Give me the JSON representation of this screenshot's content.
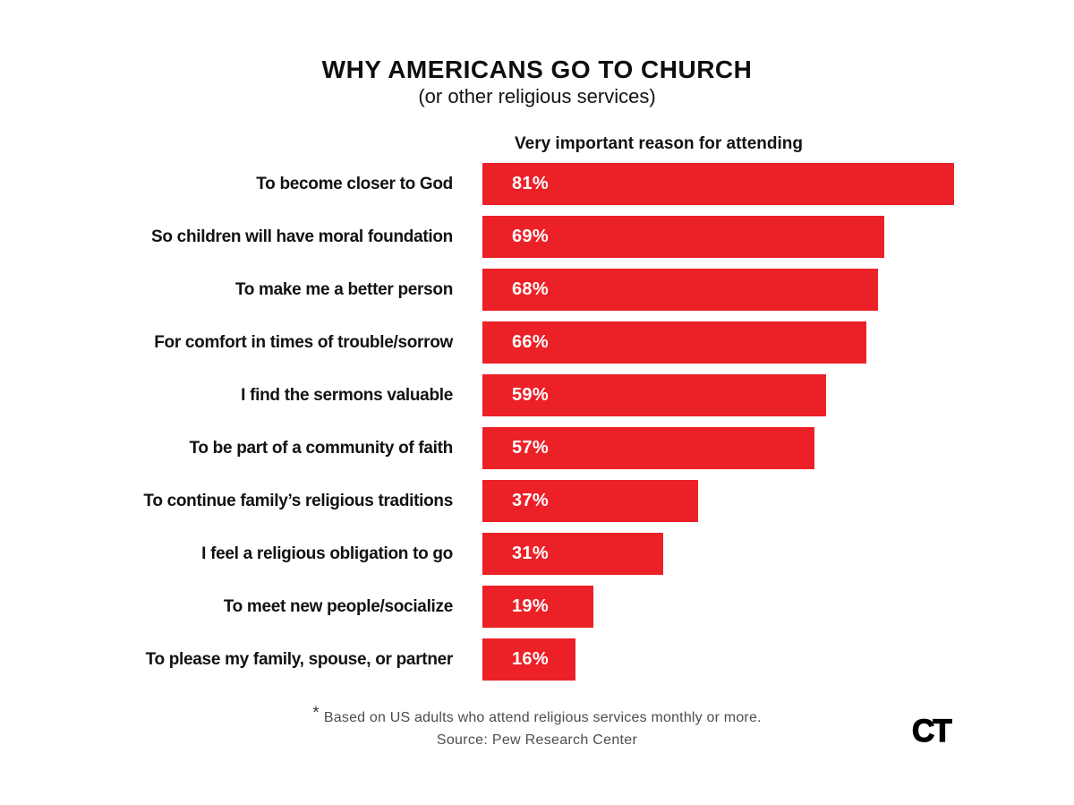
{
  "title": "WHY AMERICANS GO TO CHURCH",
  "subtitle": "(or other religious services)",
  "column_header": "Very important reason for attending",
  "chart_data": {
    "type": "bar",
    "orientation": "horizontal",
    "title": "WHY AMERICANS GO TO CHURCH (or other religious services)",
    "series_label": "Very important reason for attending",
    "categories": [
      "To become closer to God",
      "So children will have moral foundation",
      "To make me a better person",
      "For comfort in times of trouble/sorrow",
      "I find the sermons valuable",
      "To be part of a community of faith",
      "To continue family’s religious traditions",
      "I feel a religious obligation to go",
      "To meet new people/socialize",
      "To please my family, spouse, or partner"
    ],
    "values": [
      81,
      69,
      68,
      66,
      59,
      57,
      37,
      31,
      19,
      16
    ],
    "display_values": [
      "81%",
      "69%",
      "68%",
      "66%",
      "59%",
      "57%",
      "37%",
      "31%",
      "19%",
      "16%"
    ],
    "unit": "%",
    "xlim": [
      0,
      100
    ],
    "grid": false,
    "legend_position": "none",
    "bar_color": "#EC2127",
    "value_label_color": "#FFFFFF"
  },
  "footnote": {
    "marker": "*",
    "text": "Based on US adults who attend religious services monthly or more."
  },
  "source": "Source: Pew Research Center",
  "logo_text": "CT",
  "colors": {
    "bar_red": "#EC2127",
    "text_black": "#121212",
    "footnote_gray": "#4D4D4F",
    "background": "#FFFFFF"
  }
}
